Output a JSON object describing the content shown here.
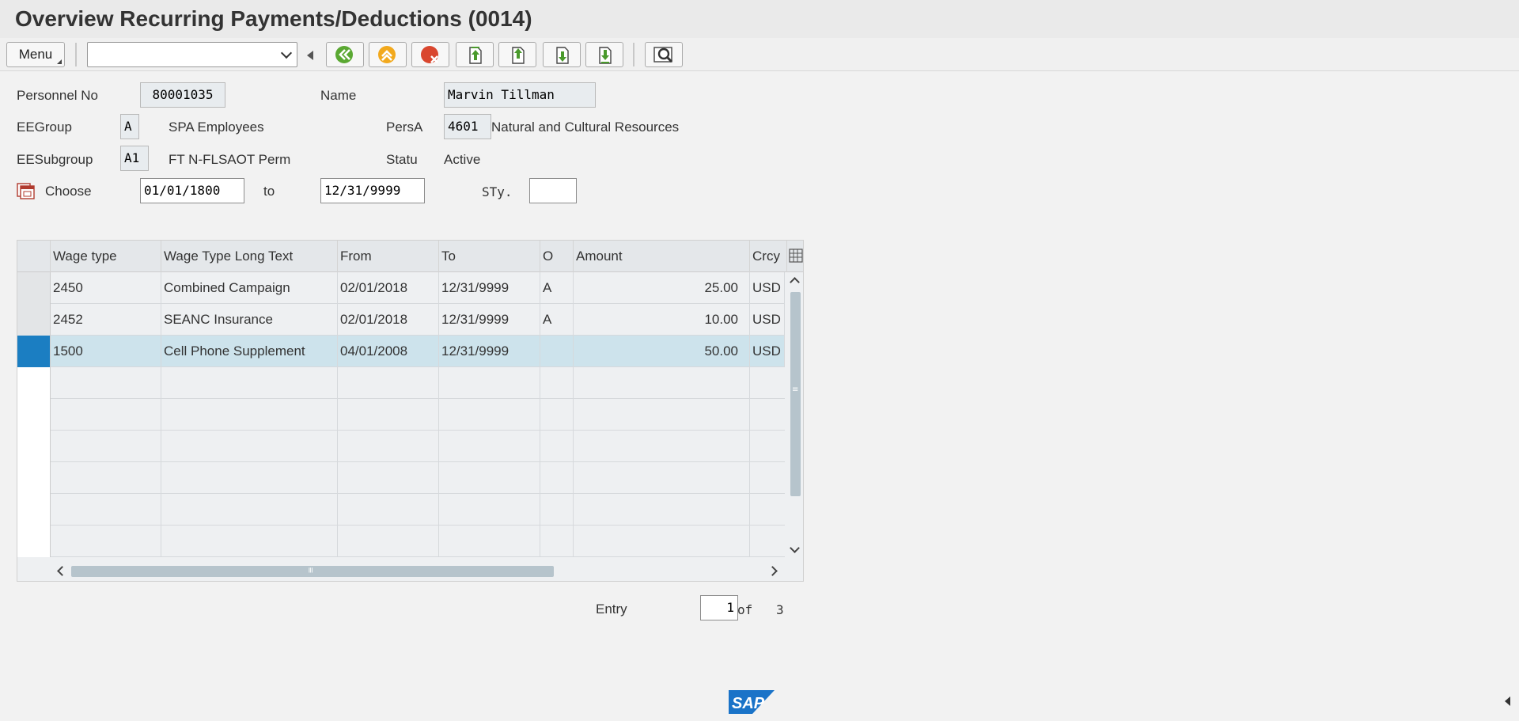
{
  "window": {
    "title": "Overview Recurring Payments/Deductions (0014)"
  },
  "toolbar": {
    "menu_label": "Menu",
    "command_field_value": "",
    "buttons": [
      {
        "name": "back-icon"
      },
      {
        "name": "exit-icon"
      },
      {
        "name": "cancel-icon"
      },
      {
        "name": "first-page-icon"
      },
      {
        "name": "previous-page-icon"
      },
      {
        "name": "next-page-icon"
      },
      {
        "name": "last-page-icon"
      },
      {
        "name": "find-icon"
      }
    ]
  },
  "header": {
    "personnel_no_label": "Personnel No",
    "personnel_no": "80001035",
    "name_label": "Name",
    "name": "Marvin Tillman",
    "eegroup_label": "EEGroup",
    "eegroup_code": "A",
    "eegroup_text": "SPA Employees",
    "persa_label": "PersA",
    "persa_code": "4601",
    "persa_text": "Natural and Cultural Resources",
    "eesubgroup_label": "EESubgroup",
    "eesubgroup_code": "A1",
    "eesubgroup_text": "FT N-FLSAOT Perm",
    "status_label": "Statu",
    "status_text": "Active",
    "choose_label": "Choose",
    "from_date": "01/01/1800",
    "to_label": "to",
    "to_date": "12/31/9999",
    "sty_label": "STy.",
    "sty_value": ""
  },
  "table": {
    "columns": [
      "Wage type",
      "Wage Type Long Text",
      "From",
      "To",
      "O",
      "Amount",
      "Crcy"
    ],
    "rows": [
      {
        "wage_type": "2450",
        "long_text": "Combined Campaign",
        "from": "02/01/2018",
        "to": "12/31/9999",
        "o": "A",
        "amount": "25.00",
        "crcy": "USD"
      },
      {
        "wage_type": "2452",
        "long_text": "SEANC Insurance",
        "from": "02/01/2018",
        "to": "12/31/9999",
        "o": "A",
        "amount": "10.00",
        "crcy": "USD"
      },
      {
        "wage_type": "1500",
        "long_text": "Cell Phone Supplement",
        "from": "04/01/2008",
        "to": "12/31/9999",
        "o": "",
        "amount": "50.00",
        "crcy": "USD"
      }
    ]
  },
  "entry": {
    "label": "Entry",
    "current": "1",
    "of_label": "of",
    "total": "3"
  },
  "footer": {
    "logo_text": "SAP"
  },
  "colors": {
    "selected_row": "#cde3ec",
    "row_selector_active": "#1b7ec2",
    "logo": "#1a73c8"
  }
}
